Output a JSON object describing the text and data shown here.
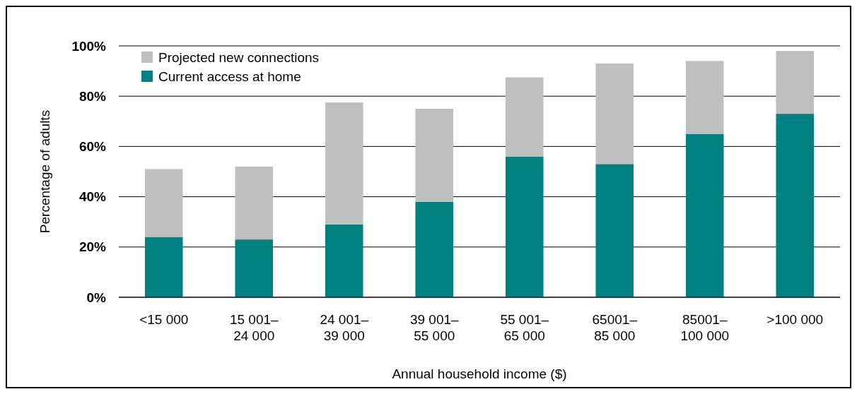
{
  "chart_data": {
    "type": "bar",
    "stacked": true,
    "xlabel": "Annual household income ($)",
    "ylabel": "Percentage of adults",
    "categories": [
      "<15 000",
      "15 001–\n24 000",
      "24 001–\n39 000",
      "39 001–\n55 000",
      "55 001–\n65 000",
      "65001–\n85 000",
      "85001–\n100 000",
      ">100 000"
    ],
    "series": [
      {
        "name": "Current access at home",
        "color": "#008080",
        "values": [
          24,
          23,
          29,
          38,
          56,
          53,
          65,
          73
        ]
      },
      {
        "name": "Projected new connections",
        "color": "#bfbfbf",
        "values": [
          27,
          29,
          48.5,
          37,
          31.5,
          40,
          29,
          25
        ]
      }
    ],
    "ylim": [
      0,
      100
    ],
    "yticks": [
      {
        "value": 0,
        "label": "0%"
      },
      {
        "value": 20,
        "label": "20%"
      },
      {
        "value": 40,
        "label": "40%"
      },
      {
        "value": 60,
        "label": "60%"
      },
      {
        "value": 80,
        "label": "80%"
      },
      {
        "value": 100,
        "label": "100%"
      }
    ],
    "grid": "y",
    "legend": "top left"
  }
}
